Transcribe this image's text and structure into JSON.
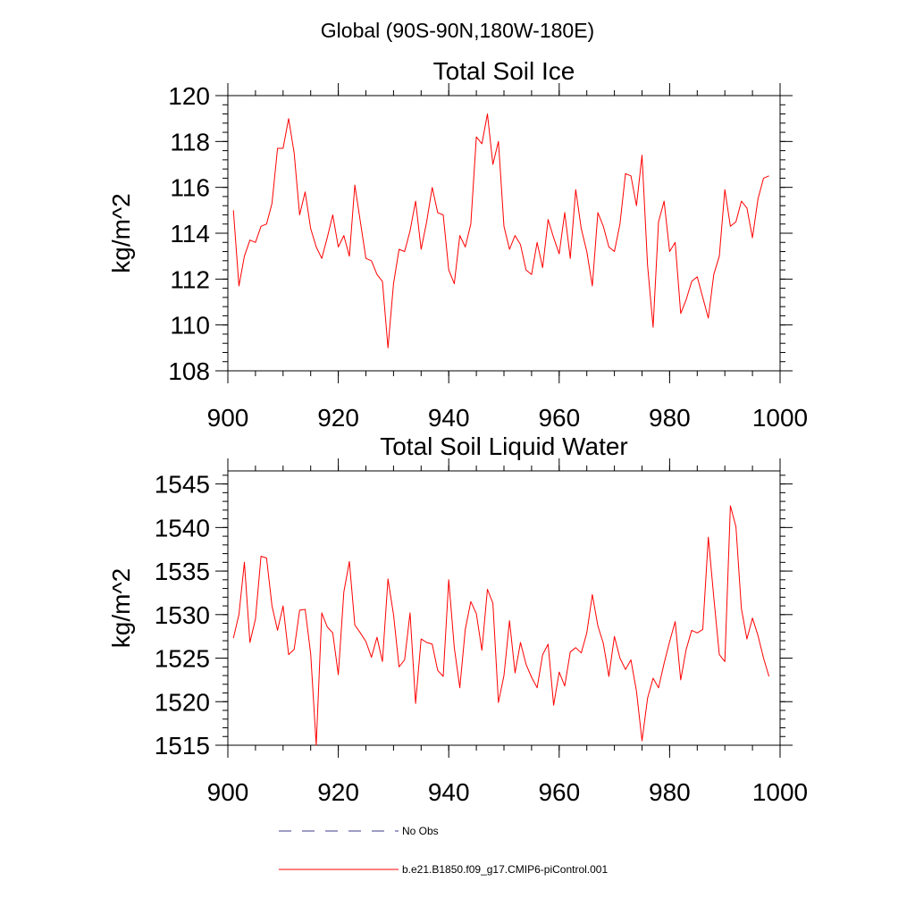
{
  "page": {
    "region_title": "Global (90S-90N,180W-180E)"
  },
  "legend": {
    "entries": [
      {
        "label": "No Obs",
        "style": "dashed",
        "color": "#3b3b8f"
      },
      {
        "label": "b.e21.B1850.f09_g17.CMIP6-piControl.001",
        "style": "solid",
        "color": "#ff0000"
      }
    ]
  },
  "chart_data": [
    {
      "type": "line",
      "title": "Total Soil Ice",
      "xlabel": "",
      "ylabel": "kg/m^2",
      "xlim": [
        900,
        1000
      ],
      "ylim": [
        108,
        120
      ],
      "xticks": [
        900,
        920,
        940,
        960,
        980,
        1000
      ],
      "yticks": [
        108,
        110,
        112,
        114,
        116,
        118,
        120
      ],
      "grid": false,
      "series": [
        {
          "color": "#ff0000",
          "x": [
            901,
            902,
            903,
            904,
            905,
            906,
            907,
            908,
            909,
            910,
            911,
            912,
            913,
            914,
            915,
            916,
            917,
            918,
            919,
            920,
            921,
            922,
            923,
            924,
            925,
            926,
            927,
            928,
            929,
            930,
            931,
            932,
            933,
            934,
            935,
            936,
            937,
            938,
            939,
            940,
            941,
            942,
            943,
            944,
            945,
            946,
            947,
            948,
            949,
            950,
            951,
            952,
            953,
            954,
            955,
            956,
            957,
            958,
            959,
            960,
            961,
            962,
            963,
            964,
            965,
            966,
            967,
            968,
            969,
            970,
            971,
            972,
            973,
            974,
            975,
            976,
            977,
            978,
            979,
            980,
            981,
            982,
            983,
            984,
            985,
            986,
            987,
            988,
            989,
            990,
            991,
            992,
            993,
            994,
            995,
            996,
            997,
            998
          ],
          "values": [
            115.0,
            111.7,
            113.0,
            113.7,
            113.6,
            114.3,
            114.4,
            115.3,
            117.7,
            117.7,
            119.0,
            117.5,
            114.8,
            115.8,
            114.2,
            113.4,
            112.9,
            113.8,
            114.8,
            113.4,
            113.9,
            113.0,
            116.1,
            114.5,
            112.9,
            112.8,
            112.2,
            111.9,
            109.0,
            111.8,
            113.3,
            113.2,
            114.1,
            115.4,
            113.3,
            114.5,
            116.0,
            114.9,
            114.8,
            112.4,
            111.8,
            113.9,
            113.4,
            114.4,
            118.2,
            117.9,
            119.2,
            117.0,
            118.0,
            114.3,
            113.3,
            113.9,
            113.5,
            112.4,
            112.2,
            113.6,
            112.5,
            114.6,
            113.8,
            113.1,
            114.9,
            112.9,
            115.9,
            114.2,
            113.2,
            111.7,
            114.9,
            114.3,
            113.4,
            113.2,
            114.4,
            116.6,
            116.5,
            115.2,
            117.4,
            112.6,
            109.9,
            114.5,
            115.4,
            113.2,
            113.6,
            110.5,
            111.1,
            111.9,
            112.1,
            111.2,
            110.3,
            112.2,
            113.0,
            115.9,
            114.3,
            114.5,
            115.4,
            115.1,
            113.8,
            115.5,
            116.4,
            116.5
          ]
        }
      ]
    },
    {
      "type": "line",
      "title": "Total Soil Liquid Water",
      "xlabel": "",
      "ylabel": "kg/m^2",
      "xlim": [
        900,
        1000
      ],
      "ylim": [
        1515,
        1546.5
      ],
      "xticks": [
        900,
        920,
        940,
        960,
        980,
        1000
      ],
      "yticks": [
        1515,
        1520,
        1525,
        1530,
        1535,
        1540,
        1545
      ],
      "grid": false,
      "series": [
        {
          "color": "#ff0000",
          "x": [
            901,
            902,
            903,
            904,
            905,
            906,
            907,
            908,
            909,
            910,
            911,
            912,
            913,
            914,
            915,
            916,
            917,
            918,
            919,
            920,
            921,
            922,
            923,
            924,
            925,
            926,
            927,
            928,
            929,
            930,
            931,
            932,
            933,
            934,
            935,
            936,
            937,
            938,
            939,
            940,
            941,
            942,
            943,
            944,
            945,
            946,
            947,
            948,
            949,
            950,
            951,
            952,
            953,
            954,
            955,
            956,
            957,
            958,
            959,
            960,
            961,
            962,
            963,
            964,
            965,
            966,
            967,
            968,
            969,
            970,
            971,
            972,
            973,
            974,
            975,
            976,
            977,
            978,
            979,
            980,
            981,
            982,
            983,
            984,
            985,
            986,
            987,
            988,
            989,
            990,
            991,
            992,
            993,
            994,
            995,
            996,
            997,
            998
          ],
          "values": [
            1527.3,
            1530.0,
            1536.0,
            1526.8,
            1529.5,
            1536.7,
            1536.5,
            1531.0,
            1528.2,
            1531.0,
            1525.4,
            1526.0,
            1530.5,
            1530.6,
            1525.5,
            1515.0,
            1530.2,
            1528.6,
            1527.9,
            1523.1,
            1532.6,
            1536.1,
            1528.8,
            1527.9,
            1526.9,
            1525.1,
            1527.4,
            1524.6,
            1534.1,
            1530.0,
            1524.0,
            1524.8,
            1530.2,
            1519.8,
            1527.2,
            1526.8,
            1526.6,
            1523.6,
            1522.9,
            1534.0,
            1526.2,
            1521.6,
            1528.3,
            1531.5,
            1530.1,
            1525.9,
            1532.9,
            1531.3,
            1519.9,
            1523.0,
            1529.3,
            1523.3,
            1526.8,
            1524.3,
            1522.8,
            1521.6,
            1525.4,
            1526.6,
            1519.6,
            1523.4,
            1521.8,
            1525.7,
            1526.2,
            1525.6,
            1527.9,
            1532.3,
            1528.7,
            1526.7,
            1522.9,
            1527.5,
            1525.0,
            1523.7,
            1524.8,
            1521.2,
            1515.5,
            1520.4,
            1522.7,
            1521.6,
            1524.4,
            1526.9,
            1529.2,
            1522.5,
            1526.0,
            1528.2,
            1527.9,
            1528.3,
            1538.9,
            1532.0,
            1525.4,
            1524.6,
            1542.5,
            1540.1,
            1530.7,
            1527.2,
            1529.6,
            1527.6,
            1525.0,
            1522.9
          ]
        }
      ]
    }
  ]
}
